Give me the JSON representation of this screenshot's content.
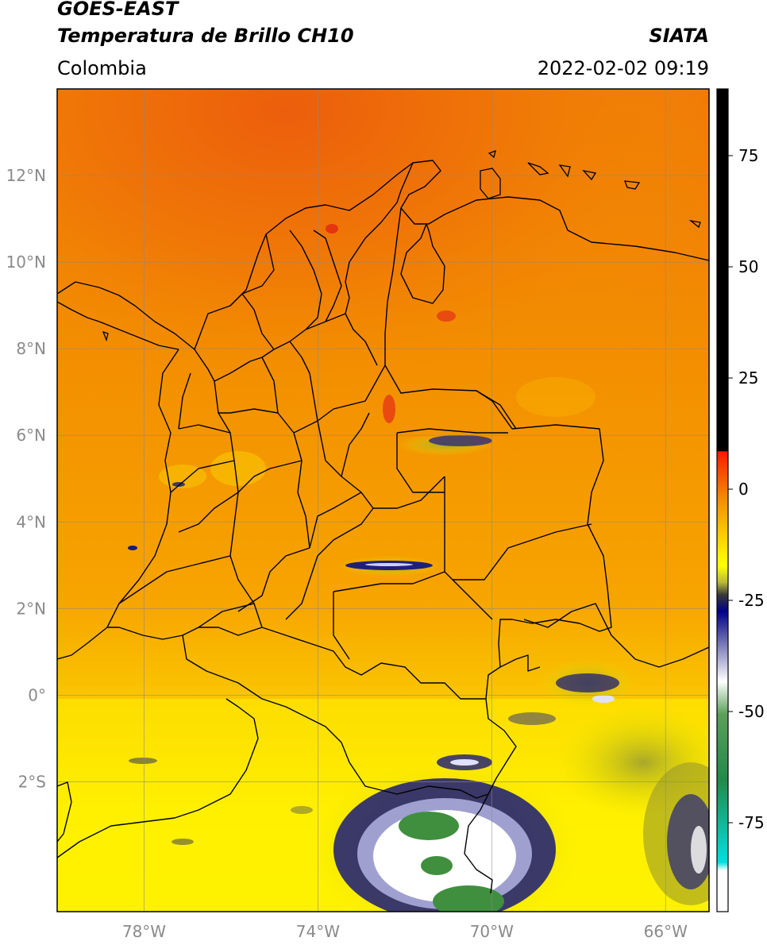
{
  "header": {
    "satellite": "GOES-EAST",
    "product": "Temperatura de Brillo CH10",
    "brand": "SIATA",
    "region": "Colombia",
    "datetime": "2022-02-02 09:19"
  },
  "map": {
    "lon_range": [
      -80,
      -65
    ],
    "lat_range": [
      -5,
      14
    ],
    "lat_ticks": [
      {
        "value": 12,
        "label": "12°N"
      },
      {
        "value": 10,
        "label": "10°N"
      },
      {
        "value": 8,
        "label": "8°N"
      },
      {
        "value": 6,
        "label": "6°N"
      },
      {
        "value": 4,
        "label": "4°N"
      },
      {
        "value": 2,
        "label": "2°N"
      },
      {
        "value": 0,
        "label": "0°"
      },
      {
        "value": -2,
        "label": "2°S"
      }
    ],
    "lon_ticks": [
      {
        "value": -78,
        "label": "78°W"
      },
      {
        "value": -74,
        "label": "74°W"
      },
      {
        "value": -70,
        "label": "70°W"
      },
      {
        "value": -66,
        "label": "66°W"
      }
    ],
    "gridlines": true,
    "colors": {
      "warm_orange": "#f29000",
      "hot_red_orange": "#ee5a0c",
      "yellow": "#ffee00",
      "olive": "#9a9a2a",
      "navy": "#1a1a7a",
      "white": "#ffffff",
      "green": "#3a8a3a"
    }
  },
  "colorbar": {
    "range": [
      -95,
      90
    ],
    "ticks": [
      {
        "value": 75,
        "label": "75"
      },
      {
        "value": 50,
        "label": "50"
      },
      {
        "value": 25,
        "label": "25"
      },
      {
        "value": 0,
        "label": "0"
      },
      {
        "value": -25,
        "label": "-25"
      },
      {
        "value": -50,
        "label": "-50"
      },
      {
        "value": -75,
        "label": "-75"
      }
    ]
  }
}
